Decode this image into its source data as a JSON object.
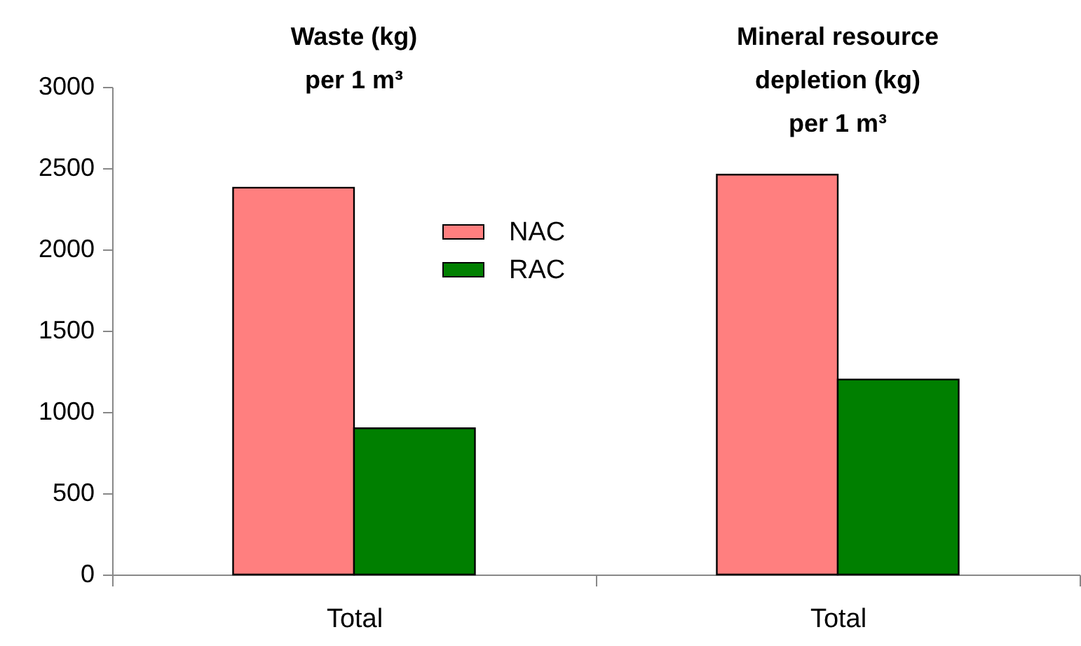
{
  "chart_data": {
    "type": "bar",
    "categories": [
      "Total",
      "Total"
    ],
    "series": [
      {
        "name": "NAC",
        "color": "#ff7f7f",
        "values": [
          2380,
          2460
        ]
      },
      {
        "name": "RAC",
        "color": "#007f00",
        "values": [
          900,
          1200
        ]
      }
    ],
    "ylim": [
      0,
      3000
    ],
    "yticks": [
      0,
      500,
      1000,
      1500,
      2000,
      2500,
      3000
    ],
    "grid": false,
    "legend": "top",
    "annotations": [
      "Waste (kg)\nper 1 m³",
      "Mineral resource\ndepletion (kg)\nper 1 m³"
    ]
  }
}
